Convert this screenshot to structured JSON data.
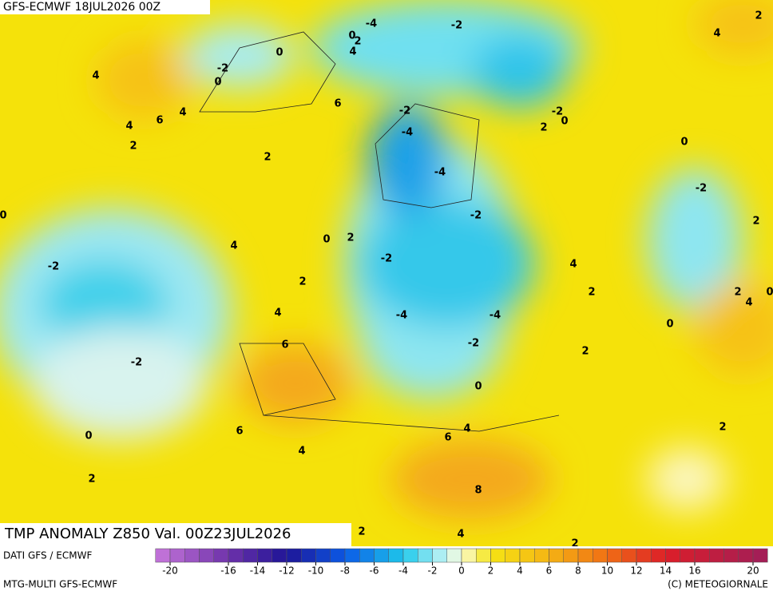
{
  "header": "GFS-ECMWF 18JUL2026 00Z",
  "title": "TMP ANOMALY Z850 Val. 00Z23JUL2026",
  "source": "DATI GFS / ECMWF",
  "model": "MTG-MULTI GFS-ECMWF",
  "copyright": "(C) METEOGIORNALE",
  "colorbar": {
    "ticks": [
      -20,
      -16,
      -14,
      -12,
      -10,
      -8,
      -6,
      -4,
      -2,
      0,
      2,
      4,
      6,
      8,
      10,
      12,
      14,
      16,
      20
    ]
  },
  "map": {
    "contour_labels": [
      -4,
      -2,
      0,
      2,
      4,
      0,
      4,
      -2,
      0,
      6,
      4,
      6,
      4,
      2,
      2,
      -2,
      -4,
      -4,
      -2,
      0,
      2,
      0,
      -2,
      2,
      -2,
      0,
      0,
      2,
      4,
      -2,
      -2,
      4,
      2,
      2,
      2,
      4,
      0,
      4,
      -4,
      -4,
      0,
      6,
      -2,
      2,
      -2,
      0,
      4,
      6,
      2,
      6,
      0,
      4,
      2,
      8,
      2,
      4,
      2,
      2,
      4
    ]
  }
}
